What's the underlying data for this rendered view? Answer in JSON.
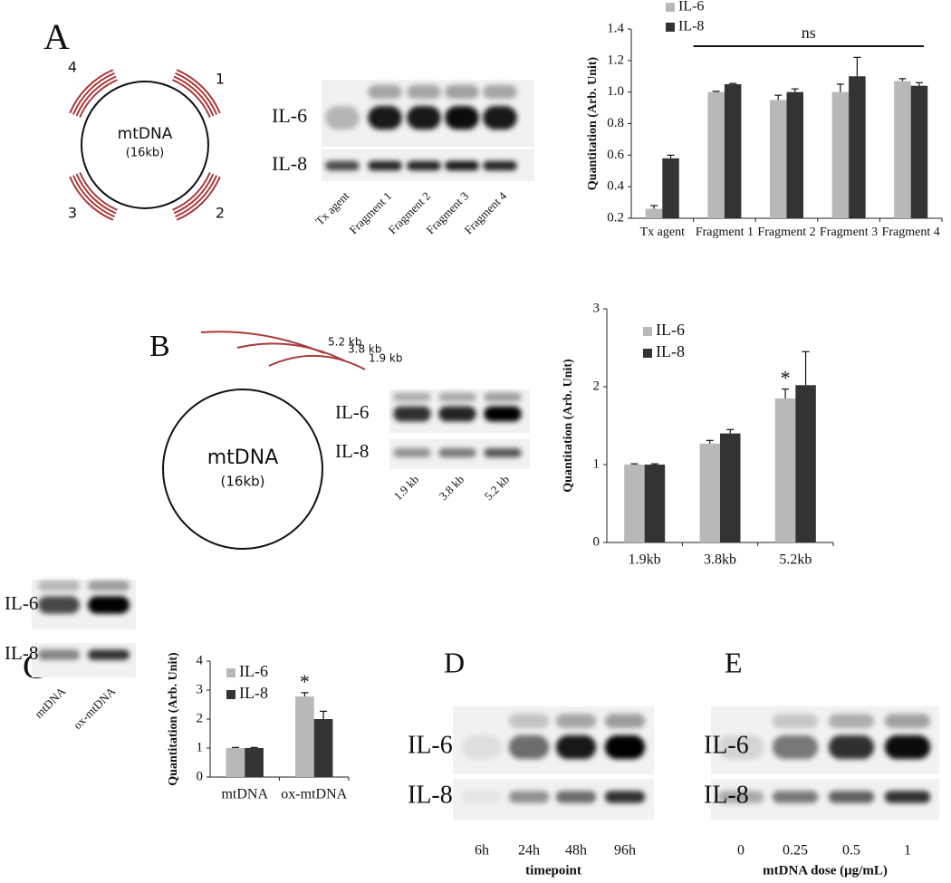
{
  "chart_data": [
    {
      "type": "bar",
      "ylabel": "Quantitation (Arb. Unit)",
      "categories": [
        "Tx agent",
        "Fragment 1",
        "Fragment 2",
        "Fragment 3",
        "Fragment 4"
      ],
      "series": [
        {
          "name": "IL-6",
          "color": "#b8b8b8",
          "values": [
            0.26,
            1.0,
            0.95,
            1.0,
            1.07
          ],
          "errors": [
            0.02,
            0.005,
            0.03,
            0.05,
            0.015
          ]
        },
        {
          "name": "IL-8",
          "color": "#333333",
          "values": [
            0.58,
            1.05,
            1.0,
            1.1,
            1.04
          ],
          "errors": [
            0.02,
            0.005,
            0.02,
            0.12,
            0.02
          ]
        }
      ],
      "ylim": [
        0.2,
        1.4
      ],
      "yticks": [
        0.2,
        0.4,
        0.6,
        0.8,
        {
          "value": 1,
          "label": "1.0"
        },
        1.2,
        1.4
      ],
      "legend": "upper left",
      "annotations": [
        "ns"
      ]
    },
    {
      "type": "bar",
      "ylabel": "Quantitation (Arb. Unit)",
      "categories": [
        "1.9kb",
        "3.8kb",
        "5.2kb"
      ],
      "series": [
        {
          "name": "IL-6",
          "color": "#b8b8b8",
          "values": [
            1.0,
            1.27,
            1.85
          ],
          "errors": [
            0.01,
            0.04,
            0.12
          ]
        },
        {
          "name": "IL-8",
          "color": "#333333",
          "values": [
            1.0,
            1.4,
            2.02
          ],
          "errors": [
            0.01,
            0.05,
            0.43
          ]
        }
      ],
      "ylim": [
        0,
        3
      ],
      "yticks": [
        0,
        1,
        2,
        3
      ],
      "legend": "upper left",
      "annotations": [
        "*"
      ]
    },
    {
      "type": "bar",
      "ylabel": "Quantitation (Arb. Unit)",
      "categories": [
        "mtDNA",
        "ox-mtDNA"
      ],
      "series": [
        {
          "name": "IL-6",
          "color": "#b8b8b8",
          "values": [
            1.0,
            2.78
          ],
          "errors": [
            0.02,
            0.13
          ]
        },
        {
          "name": "IL-8",
          "color": "#333333",
          "values": [
            1.0,
            2.0
          ],
          "errors": [
            0.02,
            0.27
          ]
        }
      ],
      "ylim": [
        0,
        4
      ],
      "yticks": [
        0,
        1,
        2,
        3,
        4
      ],
      "legend": "upper left",
      "annotations": [
        "*"
      ]
    }
  ],
  "panels": {
    "A": {
      "label": "A",
      "diagram": {
        "center": "mtDNA",
        "size": "(16kb)",
        "fragments": [
          "1",
          "2",
          "3",
          "4"
        ]
      },
      "blot": {
        "rows": [
          "IL-6",
          "IL-8"
        ],
        "lanes": [
          "Tx agent",
          "Fragment 1",
          "Fragment 2",
          "Fragment 3",
          "Fragment 4"
        ]
      }
    },
    "B": {
      "label": "B",
      "diagram": {
        "center": "mtDNA",
        "size": "(16kb)",
        "fragments": [
          "5.2 kb",
          "3.8 kb",
          "1.9 kb"
        ]
      },
      "blot": {
        "rows": [
          "IL-6",
          "IL-8"
        ],
        "lanes": [
          "1.9 kb",
          "3.8 kb",
          "5.2 kb"
        ]
      }
    },
    "C": {
      "label": "C",
      "blot": {
        "rows": [
          "IL-6",
          "IL-8"
        ],
        "lanes": [
          "mtDNA",
          "ox-mtDNA"
        ]
      }
    },
    "D": {
      "label": "D",
      "blot": {
        "rows": [
          "IL-6",
          "IL-8"
        ],
        "lanes": [
          "6h",
          "24h",
          "48h",
          "96h"
        ],
        "xlabel": "timepoint"
      }
    },
    "E": {
      "label": "E",
      "blot": {
        "rows": [
          "IL-6",
          "IL-8"
        ],
        "lanes": [
          "0",
          "0.25",
          "0.5",
          "1"
        ],
        "xlabel": "mtDNA dose (μg/mL)"
      }
    }
  }
}
